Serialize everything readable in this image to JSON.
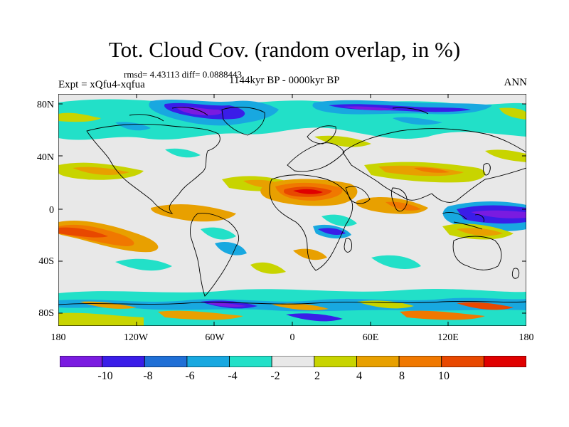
{
  "title": "Tot. Cloud Cov. (random overlap, in %)",
  "stats": "rmsd= 4.43113 diff= 0.0888443",
  "experiment": "Expt = xQfu4-xqfua",
  "period": "1144kyr BP - 0000kyr BP",
  "season": "ANN",
  "y_ticks": [
    "80N",
    "40N",
    "0",
    "40S",
    "80S"
  ],
  "x_ticks": [
    "180",
    "120W",
    "60W",
    "0",
    "60E",
    "120E",
    "180"
  ],
  "colorbar": {
    "labels": [
      "-10",
      "-8",
      "-6",
      "-4",
      "-2",
      "2",
      "4",
      "8",
      "10"
    ],
    "colors": [
      "#7a1be0",
      "#3a1de8",
      "#1f6fd6",
      "#18a8e0",
      "#22e0c8",
      "#e8e8e8",
      "#c8d400",
      "#e8a000",
      "#f07800",
      "#e84800",
      "#e00000"
    ]
  },
  "map_colors": {
    "ocean_neutral": "#e8e8e8",
    "coast": "#000000"
  }
}
